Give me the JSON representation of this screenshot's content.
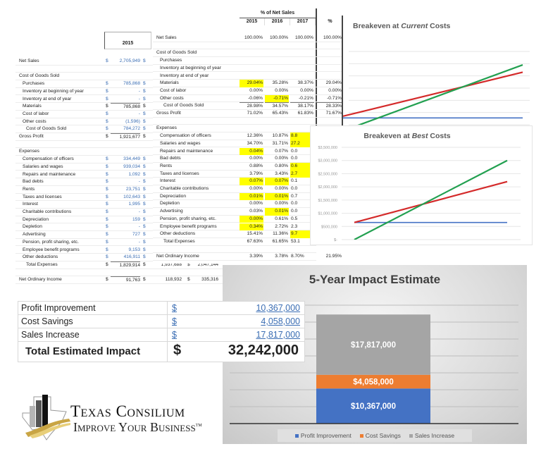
{
  "income_sheet": {
    "year_header": "2015",
    "rows": [
      {
        "label": "Net Sales",
        "indent": 0,
        "value": "2,705,949",
        "style": "blue"
      },
      null,
      {
        "label": "Cost of Goods Sold",
        "indent": 0
      },
      {
        "label": "Purchases",
        "indent": 1,
        "value": "785,868",
        "style": "blue"
      },
      {
        "label": "Inventory at beginning of year",
        "indent": 1,
        "value": "-",
        "style": "blue"
      },
      {
        "label": "Inventory at end of year",
        "indent": 1,
        "value": "-",
        "style": "blue"
      },
      {
        "label": "Materials",
        "indent": 1,
        "value": "785,868",
        "style": "black"
      },
      {
        "label": "Cost of labor",
        "indent": 1,
        "value": "-",
        "style": "blue"
      },
      {
        "label": "Other costs",
        "indent": 1,
        "value": "(1,596)",
        "style": "blue"
      },
      {
        "label": "Cost of Goods Sold",
        "indent": 2,
        "value": "784,272",
        "style": "blue"
      },
      {
        "label": "Gross Profit",
        "indent": 0,
        "value": "1,921,677",
        "style": "black"
      },
      null,
      {
        "label": "Expenses",
        "indent": 0
      },
      {
        "label": "Compensation of officers",
        "indent": 1,
        "value": "334,449",
        "style": "blue"
      },
      {
        "label": "Salaries and wages",
        "indent": 1,
        "value": "939,034",
        "style": "blue"
      },
      {
        "label": "Repairs and maintenance",
        "indent": 1,
        "value": "1,092",
        "style": "blue"
      },
      {
        "label": "Bad debts",
        "indent": 1,
        "value": "-",
        "style": "blue"
      },
      {
        "label": "Rents",
        "indent": 1,
        "value": "23,751",
        "style": "blue"
      },
      {
        "label": "Taxes and licenses",
        "indent": 1,
        "value": "102,643",
        "style": "blue"
      },
      {
        "label": "Interest",
        "indent": 1,
        "value": "1,995",
        "style": "blue"
      },
      {
        "label": "Charitable contributions",
        "indent": 1,
        "value": "-",
        "style": "blue"
      },
      {
        "label": "Depreciation",
        "indent": 1,
        "value": "159",
        "style": "blue"
      },
      {
        "label": "Depletion",
        "indent": 1,
        "value": "-",
        "style": "blue"
      },
      {
        "label": "Advertising",
        "indent": 1,
        "value": "727",
        "style": "blue"
      },
      {
        "label": "Pension, profit sharing, etc.",
        "indent": 1,
        "value": "-",
        "style": "blue"
      },
      {
        "label": "Employee benefit programs",
        "indent": 1,
        "value": "9,153",
        "style": "blue"
      },
      {
        "label": "Other deductions",
        "indent": 1,
        "value": "416,911",
        "style": "blue"
      },
      {
        "label": "Total Expenses",
        "indent": 2,
        "value": "1,829,914",
        "style": "black",
        "extra": [
          "1,937,688",
          "2,047,144"
        ]
      },
      null,
      {
        "label": "Net Ordinary Income",
        "indent": 0,
        "value": "91,763",
        "style": "black",
        "extra": [
          "118,932",
          "335,316"
        ]
      }
    ]
  },
  "percent_sheet": {
    "group_header": "% of Net Sales",
    "columns": [
      "2015",
      "2016",
      "2017",
      "%"
    ],
    "rows": [
      {
        "label": "Net Sales",
        "indent": 0,
        "values": [
          "100.00%",
          "100.00%",
          "100.00%",
          "100.00%"
        ]
      },
      null,
      {
        "label": "Cost of Goods Sold",
        "indent": 0,
        "values": []
      },
      {
        "label": "Purchases",
        "indent": 1,
        "values": []
      },
      {
        "label": "Inventory at beginning of year",
        "indent": 1,
        "values": []
      },
      {
        "label": "Inventory at end of year",
        "indent": 1,
        "values": []
      },
      {
        "label": "Materials",
        "indent": 1,
        "values": [
          "29.04%",
          "35.28%",
          "38.37%",
          "29.04%"
        ],
        "highlight": [
          0
        ]
      },
      {
        "label": "Cost of labor",
        "indent": 1,
        "values": [
          "0.00%",
          "0.00%",
          "0.00%",
          "0.00%"
        ]
      },
      {
        "label": "Other costs",
        "indent": 1,
        "values": [
          "-0.06%",
          "-0.71%",
          "-0.21%",
          "-0.71%"
        ],
        "highlight": [
          1
        ]
      },
      {
        "label": "Cost of Goods Sold",
        "indent": 2,
        "values": [
          "28.98%",
          "34.57%",
          "38.17%",
          "28.33%"
        ]
      },
      {
        "label": "Gross Profit",
        "indent": 0,
        "values": [
          "71.02%",
          "65.43%",
          "61.83%",
          "71.67%"
        ]
      },
      null,
      {
        "label": "Expenses",
        "indent": 0,
        "values": []
      },
      {
        "label": "Compensation of officers",
        "indent": 1,
        "values": [
          "12.36%",
          "10.87%",
          "8.8"
        ],
        "highlight": [
          2
        ]
      },
      {
        "label": "Salaries and wages",
        "indent": 1,
        "values": [
          "34.70%",
          "31.71%",
          "27.2"
        ],
        "highlight": [
          2
        ]
      },
      {
        "label": "Repairs and maintenance",
        "indent": 1,
        "values": [
          "0.04%",
          "0.07%",
          "0.0"
        ],
        "highlight": [
          0
        ]
      },
      {
        "label": "Bad debts",
        "indent": 1,
        "values": [
          "0.00%",
          "0.00%",
          "0.0"
        ]
      },
      {
        "label": "Rents",
        "indent": 1,
        "values": [
          "0.88%",
          "0.80%",
          "0.6"
        ],
        "highlight": [
          2
        ]
      },
      {
        "label": "Taxes and licenses",
        "indent": 1,
        "values": [
          "3.79%",
          "3.43%",
          "2.7"
        ],
        "highlight": [
          2
        ]
      },
      {
        "label": "Interest",
        "indent": 1,
        "values": [
          "0.07%",
          "0.07%",
          "0.1"
        ],
        "highlight": [
          0,
          1
        ]
      },
      {
        "label": "Charitable contributions",
        "indent": 1,
        "values": [
          "0.00%",
          "0.00%",
          "0.0"
        ]
      },
      {
        "label": "Depreciation",
        "indent": 1,
        "values": [
          "0.01%",
          "0.01%",
          "0.7"
        ],
        "highlight": [
          0,
          1
        ]
      },
      {
        "label": "Depletion",
        "indent": 1,
        "values": [
          "0.00%",
          "0.00%",
          "0.0"
        ]
      },
      {
        "label": "Advertising",
        "indent": 1,
        "values": [
          "0.03%",
          "0.01%",
          "0.0"
        ],
        "highlight": [
          1
        ]
      },
      {
        "label": "Pension, profit sharing, etc.",
        "indent": 1,
        "values": [
          "0.00%",
          "0.61%",
          "0.5"
        ],
        "highlight": [
          0
        ]
      },
      {
        "label": "Employee benefit programs",
        "indent": 1,
        "values": [
          "0.34%",
          "2.72%",
          "2.3"
        ],
        "highlight": [
          0
        ]
      },
      {
        "label": "Other deductions",
        "indent": 1,
        "values": [
          "15.41%",
          "11.36%",
          "9.7"
        ],
        "highlight": [
          2
        ]
      },
      {
        "label": "Total Expenses",
        "indent": 2,
        "values": [
          "67.63%",
          "61.65%",
          "53.1"
        ]
      },
      null,
      {
        "label": "Net Ordinary Income",
        "indent": 0,
        "values": [
          "3.39%",
          "3.78%",
          "8.70%",
          "21.95%"
        ]
      }
    ]
  },
  "summary": {
    "currency": "$",
    "rows": [
      {
        "label": "Profit Improvement",
        "value": "10,367,000"
      },
      {
        "label": "Cost Savings",
        "value": "4,058,000"
      },
      {
        "label": "Sales Increase",
        "value": "17,817,000"
      }
    ],
    "total_label": "Total Estimated Impact",
    "total_value": "32,242,000"
  },
  "logo": {
    "name": "Texas Consilium",
    "tagline": "Improve Your Business",
    "trademark": "TM"
  },
  "colors": {
    "blue_line": "#4472c4",
    "red_line": "#d42a2a",
    "green_line": "#22a050",
    "profit": "#4472c4",
    "cost": "#ed7d31",
    "sales": "#a5a5a5",
    "highlight": "#ffff00"
  },
  "chart_data": [
    {
      "type": "line",
      "title_prefix": "Breakeven at ",
      "title_emph": "Current",
      "title_suffix": " Costs",
      "x": [
        0,
        1
      ],
      "ylim": [
        0,
        3000000
      ],
      "grid": true,
      "series": [
        {
          "color": "#4472c4",
          "values": [
            280000,
            280000
          ]
        },
        {
          "color": "#d42a2a",
          "values": [
            350000,
            2150000
          ]
        },
        {
          "color": "#22a050",
          "values": [
            -250000,
            2450000
          ]
        }
      ]
    },
    {
      "type": "line",
      "title_prefix": "Breakeven at ",
      "title_emph": "Best",
      "title_suffix": " Costs",
      "x": [
        0,
        1
      ],
      "ylim": [
        0,
        3500000
      ],
      "yticks": [
        "$-",
        "$500,000",
        "$1,000,000",
        "$1,500,000",
        "$2,000,000",
        "$2,500,000",
        "$3,000,000",
        "$3,500,000"
      ],
      "grid": true,
      "series": [
        {
          "color": "#4472c4",
          "values": [
            650000,
            650000
          ]
        },
        {
          "color": "#d42a2a",
          "values": [
            650000,
            2200000
          ]
        },
        {
          "color": "#22a050",
          "values": [
            0,
            3000000
          ]
        }
      ]
    },
    {
      "type": "bar",
      "stacked": true,
      "title": "5-Year Impact Estimate",
      "ylim": [
        0,
        35000000
      ],
      "grid": true,
      "legend": "bottom",
      "series": [
        {
          "name": "Profit Improvement",
          "value": 10367000,
          "label": "$10,367,000",
          "color": "#4472c4"
        },
        {
          "name": "Cost Savings",
          "value": 4058000,
          "label": "$4,058,000",
          "color": "#ed7d31"
        },
        {
          "name": "Sales Increase",
          "value": 17817000,
          "label": "$17,817,000",
          "color": "#a5a5a5"
        }
      ]
    }
  ]
}
